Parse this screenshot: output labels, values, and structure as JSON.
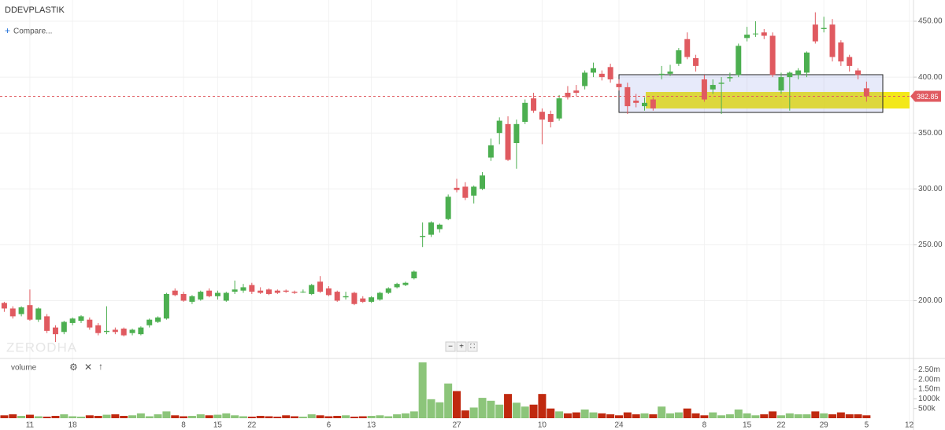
{
  "chart_data": {
    "type": "candlestick",
    "title": "DDEVPLASTIK",
    "compare_label": "Compare...",
    "watermark": "ZERODHA",
    "volume_label": "volume",
    "last_price": 382.85,
    "xlim": [
      -0.5,
      106.5
    ],
    "xticks": [
      {
        "value": 3,
        "label": "11"
      },
      {
        "value": 8,
        "label": "18"
      },
      {
        "value": 21,
        "label": "8"
      },
      {
        "value": 25,
        "label": "15"
      },
      {
        "value": 29,
        "label": "22"
      },
      {
        "value": 38,
        "label": "6"
      },
      {
        "value": 43,
        "label": "13"
      },
      {
        "value": 53,
        "label": "27"
      },
      {
        "value": 63,
        "label": "10"
      },
      {
        "value": 72,
        "label": "24"
      },
      {
        "value": 82,
        "label": "8"
      },
      {
        "value": 87,
        "label": "15"
      },
      {
        "value": 91,
        "label": "22"
      },
      {
        "value": 96,
        "label": "29"
      },
      {
        "value": 101,
        "label": "5"
      },
      {
        "value": 106,
        "label": "12"
      }
    ],
    "ylim": [
      149,
      469
    ],
    "yticks": [
      {
        "value": 200,
        "label": "200.00"
      },
      {
        "value": 250,
        "label": "250.00"
      },
      {
        "value": 300,
        "label": "300.00"
      },
      {
        "value": 350,
        "label": "350.00"
      },
      {
        "value": 400,
        "label": "400.00"
      },
      {
        "value": 450,
        "label": "450.00"
      }
    ],
    "volume_ylim": [
      0,
      3000000
    ],
    "volume_ticks": [
      {
        "value": 500000,
        "label": "500k"
      },
      {
        "value": 1000000,
        "label": "1000k"
      },
      {
        "value": 1500000,
        "label": "1.50m"
      },
      {
        "value": 2000000,
        "label": "2.00m"
      },
      {
        "value": 2500000,
        "label": "2.50m"
      }
    ],
    "grid": true,
    "up_color": "#4caf50",
    "down_color": "#e05a60",
    "volume_up_color": "#8cc57a",
    "volume_down_color": "#c0290f",
    "open": [
      198,
      193,
      188,
      196,
      183,
      186,
      176,
      172,
      180,
      182,
      183,
      178,
      172,
      174,
      175,
      171,
      170,
      178,
      181,
      184,
      209,
      206,
      199,
      201,
      209,
      204,
      200,
      208,
      209,
      214,
      209,
      210,
      209,
      209,
      208,
      208,
      206,
      217,
      211,
      208,
      203,
      207,
      202,
      199,
      201,
      207,
      212,
      214,
      220,
      257,
      259,
      264,
      273,
      301,
      302,
      294,
      300,
      328,
      350,
      358,
      341,
      360,
      381,
      369,
      367,
      363,
      386,
      388,
      392,
      404,
      403,
      409,
      394,
      391,
      379,
      374,
      380,
      402,
      403,
      412,
      434,
      417,
      398,
      389,
      394,
      399,
      402,
      435,
      439,
      440,
      437,
      388,
      400,
      402,
      404,
      447,
      443,
      447,
      431,
      418,
      406,
      390
    ],
    "high": [
      199,
      195,
      195,
      210,
      194,
      188,
      178,
      182,
      185,
      187,
      185,
      180,
      195,
      176,
      176,
      175,
      177,
      184,
      186,
      207,
      211,
      208,
      205,
      209,
      211,
      209,
      208,
      218,
      215,
      216,
      212,
      211,
      210,
      210,
      209,
      210,
      215,
      222,
      213,
      209,
      208,
      208,
      204,
      204,
      208,
      212,
      216,
      217,
      227,
      270,
      271,
      269,
      295,
      309,
      306,
      303,
      315,
      345,
      364,
      365,
      362,
      380,
      386,
      372,
      370,
      384,
      392,
      393,
      406,
      413,
      406,
      412,
      398,
      395,
      385,
      382,
      382,
      410,
      411,
      426,
      440,
      420,
      402,
      398,
      400,
      404,
      430,
      445,
      450,
      443,
      440,
      404,
      405,
      408,
      423,
      458,
      454,
      452,
      433,
      420,
      408,
      396
    ],
    "low": [
      190,
      184,
      186,
      182,
      181,
      171,
      163,
      170,
      178,
      180,
      174,
      169,
      170,
      170,
      168,
      169,
      169,
      176,
      180,
      183,
      204,
      199,
      197,
      200,
      203,
      201,
      199,
      206,
      207,
      206,
      206,
      205,
      206,
      207,
      206,
      207,
      205,
      207,
      204,
      199,
      201,
      196,
      198,
      198,
      200,
      206,
      211,
      213,
      219,
      248,
      257,
      261,
      272,
      297,
      290,
      287,
      299,
      325,
      340,
      325,
      318,
      358,
      368,
      340,
      355,
      361,
      380,
      383,
      389,
      400,
      397,
      395,
      388,
      367,
      373,
      370,
      370,
      398,
      401,
      410,
      416,
      405,
      378,
      385,
      367,
      396,
      400,
      432,
      436,
      434,
      400,
      385,
      370,
      398,
      400,
      430,
      440,
      414,
      410,
      405,
      398,
      378
    ],
    "close": [
      193,
      186,
      194,
      183,
      193,
      173,
      170,
      181,
      184,
      186,
      176,
      171,
      173,
      172,
      169,
      174,
      176,
      183,
      185,
      206,
      205,
      200,
      204,
      208,
      204,
      207,
      207,
      210,
      212,
      208,
      207,
      206,
      207,
      208,
      207,
      208,
      214,
      208,
      205,
      200,
      204,
      197,
      199,
      203,
      207,
      211,
      215,
      216,
      226,
      258,
      270,
      268,
      293,
      299,
      292,
      302,
      312,
      339,
      361,
      326,
      358,
      377,
      370,
      362,
      360,
      381,
      382,
      386,
      404,
      408,
      400,
      398,
      391,
      374,
      377,
      377,
      372,
      403,
      405,
      424,
      418,
      410,
      380,
      393,
      395,
      400,
      428,
      438,
      439,
      437,
      402,
      400,
      404,
      406,
      422,
      432,
      444,
      418,
      414,
      410,
      402,
      382.85
    ],
    "volume": [
      150000,
      200000,
      120000,
      180000,
      100000,
      80000,
      120000,
      200000,
      100000,
      80000,
      150000,
      120000,
      180000,
      200000,
      120000,
      150000,
      250000,
      100000,
      200000,
      350000,
      150000,
      100000,
      120000,
      200000,
      150000,
      180000,
      250000,
      150000,
      100000,
      80000,
      120000,
      100000,
      80000,
      150000,
      100000,
      80000,
      200000,
      150000,
      100000,
      120000,
      150000,
      80000,
      100000,
      120000,
      150000,
      100000,
      200000,
      250000,
      350000,
      2880000,
      980000,
      820000,
      1790000,
      1400000,
      400000,
      550000,
      1050000,
      900000,
      700000,
      1250000,
      800000,
      600000,
      700000,
      1250000,
      500000,
      350000,
      250000,
      300000,
      450000,
      300000,
      250000,
      200000,
      150000,
      300000,
      200000,
      250000,
      200000,
      600000,
      250000,
      300000,
      500000,
      250000,
      150000,
      300000,
      150000,
      200000,
      450000,
      250000,
      150000,
      200000,
      350000,
      150000,
      250000,
      200000,
      200000,
      350000,
      250000,
      200000,
      300000,
      200000,
      200000,
      150000
    ]
  }
}
